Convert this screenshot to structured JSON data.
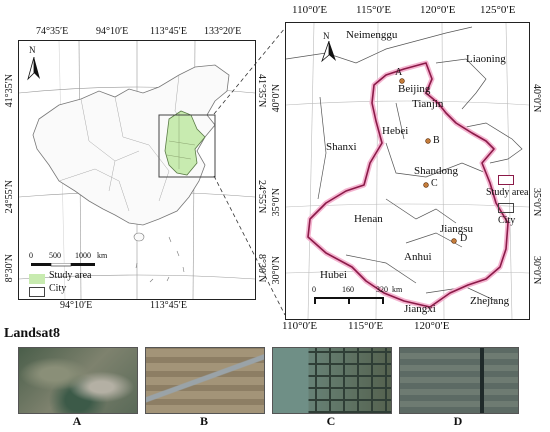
{
  "left_map": {
    "top_ticks": [
      "74°35′E",
      "94°10′E",
      "113°45′E",
      "133°20′E"
    ],
    "bottom_ticks": [
      "94°10′E",
      "113°45′E"
    ],
    "left_ticks": [
      "41°35′N",
      "24°55′N",
      "8°30′N"
    ],
    "right_ticks": [
      "41°35′N",
      "24°55′N",
      "8°30′N"
    ],
    "north_label": "N",
    "scale": {
      "values": [
        "0",
        "500",
        "1000"
      ],
      "unit": "km"
    },
    "legend": [
      {
        "label": "Study area",
        "color": "#c8ebb0"
      },
      {
        "label": "City",
        "color": "#ffffff"
      }
    ]
  },
  "right_map": {
    "top_ticks": [
      "110°0′E",
      "115°0′E",
      "120°0′E",
      "125°0′E"
    ],
    "bottom_ticks": [
      "110°0′E",
      "115°0′E",
      "120°0′E"
    ],
    "left_ticks": [
      "40°0′N",
      "35°0′N",
      "30°0′N"
    ],
    "right_ticks": [
      "40°0′N",
      "35°0′N",
      "30°0′N"
    ],
    "north_label": "N",
    "regions": [
      "Neimenggu",
      "Liaoning",
      "Beijing",
      "Tianjin",
      "Hebei",
      "Shanxi",
      "Shandong",
      "Henan",
      "Jiangsu",
      "Anhui",
      "Hubei",
      "Jiangxi",
      "Zhejiang"
    ],
    "points": [
      "A",
      "B",
      "C",
      "D"
    ],
    "scale": {
      "values": [
        "0",
        "160",
        "320"
      ],
      "unit": "km"
    },
    "legend": [
      {
        "label": "Study area",
        "color": "#a0184a"
      },
      {
        "label": "City",
        "color": "#ffffff"
      }
    ]
  },
  "landsat_title": "Landsat8",
  "thumbnails": [
    "A",
    "B",
    "C",
    "D"
  ]
}
